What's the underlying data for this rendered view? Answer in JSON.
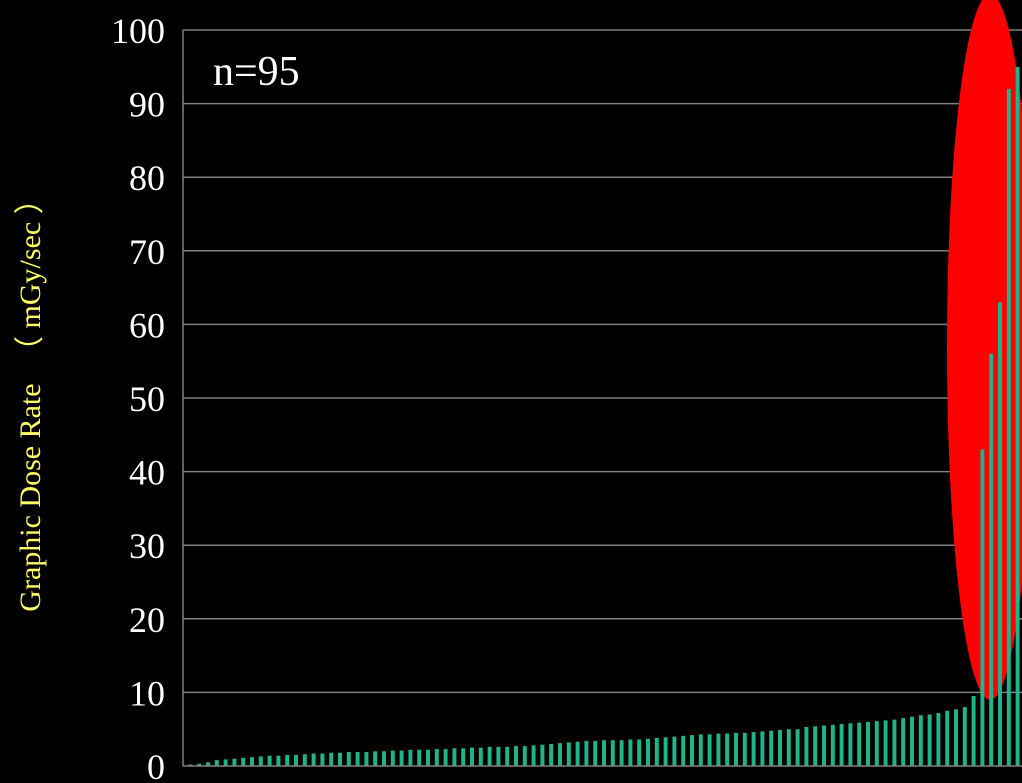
{
  "chart_data": {
    "type": "bar",
    "title": "",
    "xlabel": "",
    "ylabel": "Graphic Dose Rate (mGy/sec)",
    "ylabel_parts": [
      "Graphic Dose Rate",
      "（ mGy/sec ）"
    ],
    "ylim": [
      0,
      100
    ],
    "yticks": [
      "0",
      "10",
      "20",
      "30",
      "40",
      "50",
      "60",
      "70",
      "80",
      "90",
      "100"
    ],
    "grid": true,
    "annotation": "n=95",
    "highlight": {
      "shape": "ellipse",
      "color": "#ff0000",
      "covers": "rightmost bars"
    },
    "bar_color": "#20b48a",
    "values": [
      0.2,
      0.3,
      0.5,
      0.8,
      0.9,
      1.0,
      1.1,
      1.2,
      1.3,
      1.4,
      1.4,
      1.5,
      1.5,
      1.6,
      1.7,
      1.7,
      1.8,
      1.8,
      1.9,
      1.9,
      1.9,
      2.0,
      2.0,
      2.1,
      2.1,
      2.2,
      2.2,
      2.2,
      2.3,
      2.3,
      2.4,
      2.4,
      2.5,
      2.5,
      2.6,
      2.6,
      2.6,
      2.7,
      2.7,
      2.8,
      2.9,
      3.0,
      3.1,
      3.2,
      3.3,
      3.4,
      3.4,
      3.5,
      3.5,
      3.5,
      3.6,
      3.6,
      3.7,
      3.8,
      3.9,
      4.0,
      4.1,
      4.2,
      4.3,
      4.3,
      4.4,
      4.4,
      4.5,
      4.5,
      4.6,
      4.7,
      4.8,
      4.9,
      5.0,
      5.0,
      5.3,
      5.4,
      5.5,
      5.6,
      5.7,
      5.8,
      5.9,
      6.0,
      6.1,
      6.2,
      6.3,
      6.5,
      6.7,
      6.9,
      7.0,
      7.2,
      7.5,
      7.7,
      8.0,
      9.5,
      43.0,
      56.0,
      63.0,
      92.0,
      95.0
    ]
  }
}
